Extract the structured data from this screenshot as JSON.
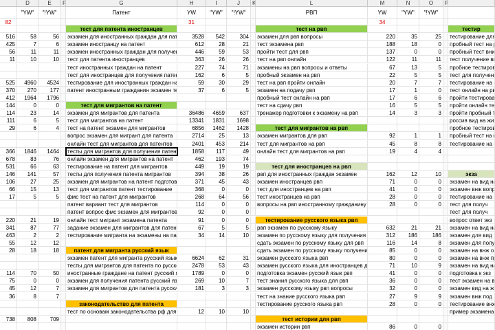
{
  "column_letters": {
    "D": "D",
    "E": "E",
    "F": "F",
    "G": "G",
    "H": "H",
    "I": "I",
    "J": "J",
    "K": "K",
    "L": "L",
    "M": "M",
    "N": "N",
    "O": "O",
    "P": "P"
  },
  "headers": {
    "D": "\"YW\"",
    "E": "\"!YW\"",
    "G": "Патент",
    "H": "YW",
    "I": "\"YW\"",
    "J": "\"!YW\"",
    "L": "РВП",
    "M": "YW",
    "N": "\"YW\"",
    "O": "\"!YW\""
  },
  "flags": {
    "C": 82,
    "H": 31,
    "M": 34
  },
  "sheet": {
    "left": [
      null,
      [
        516,
        58,
        56
      ],
      [
        425,
        7,
        6
      ],
      [
        56,
        11,
        11
      ],
      [
        11,
        10,
        10
      ],
      null,
      null,
      [
        525,
        4960,
        4524
      ],
      [
        370,
        270,
        177
      ],
      [
        412,
        1964,
        1796
      ],
      [
        144,
        0,
        0
      ],
      [
        114,
        23,
        14
      ],
      [
        111,
        6,
        5
      ],
      [
        29,
        6,
        4
      ],
      null,
      null,
      [
        366,
        1846,
        1464
      ],
      [
        678,
        83,
        76
      ],
      [
        531,
        66,
        63
      ],
      [
        146,
        141,
        57
      ],
      [
        106,
        27,
        25
      ],
      [
        66,
        15,
        13
      ],
      [
        17,
        5,
        5
      ],
      null,
      null,
      [
        220,
        21,
        19
      ],
      [
        341,
        87,
        77
      ],
      [
        463,
        2,
        2
      ],
      [
        55,
        12,
        12
      ],
      [
        28,
        18,
        18
      ],
      null,
      null,
      [
        114,
        70,
        50
      ],
      [
        75,
        0,
        0
      ],
      [
        45,
        12,
        7
      ],
      [
        36,
        8,
        7
      ],
      null,
      null,
      [
        738,
        808,
        709
      ],
      null
    ],
    "patent": [
      {
        "text": "тест для патента иностранцев",
        "fill": "#92d050"
      },
      {
        "text": "экзамен для иностранных граждан для патента",
        "values": [
          3528,
          542,
          304
        ]
      },
      {
        "text": "экзамен иностранцу на патент",
        "values": [
          612,
          28,
          21
        ]
      },
      {
        "text": "экзамен иностранных граждан для получения",
        "values": [
          446,
          59,
          53
        ]
      },
      {
        "text": "тест для патента иностранцев",
        "values": [
          363,
          26,
          26
        ]
      },
      {
        "text": "тест иностранных граждан на патент",
        "values": [
          227,
          74,
          71
        ]
      },
      {
        "text": "тест для иностранцев для получения патент",
        "values": [
          162,
          6,
          5
        ]
      },
      {
        "text": "тестирование для иностранных граждан на п",
        "values": [
          59,
          30,
          29
        ]
      },
      {
        "text": "патент иностранным гражданин экзамен тест",
        "values": [
          37,
          6,
          5
        ]
      },
      null,
      {
        "text": "тест для мигрантов на патент",
        "fill": "#92d050"
      },
      {
        "text": "экзамен для мигрантов для патента",
        "values": [
          36486,
          4659,
          637
        ]
      },
      {
        "text": "тест для мигрантов на патент",
        "values": [
          13341,
          1831,
          1698
        ]
      },
      {
        "text": "тест на патент экзамен для мигрантов",
        "values": [
          6856,
          1462,
          1428
        ]
      },
      {
        "text": "вопрос экзамен для мигрант для патента",
        "values": [
          2714,
          25,
          13
        ]
      },
      {
        "text": "онлайн тест для мигрантов для патентов",
        "values": [
          2401,
          453,
          214
        ]
      },
      {
        "text": "тесты для мигрантов для получения патента",
        "values": [
          1858,
          117,
          49
        ]
      },
      {
        "text": "онлайн экзамен для мигрантов на патент",
        "values": [
          462,
          193,
          74
        ]
      },
      {
        "text": "тестирование на патент для мигрантов",
        "values": [
          449,
          19,
          19
        ]
      },
      {
        "text": "тесты для получения патента мигрантов",
        "values": [
          394,
          38,
          26
        ]
      },
      {
        "text": "экзамен для мигрантов на патент подготовка",
        "values": [
          371,
          45,
          43
        ]
      },
      {
        "text": "тест для мигрантов патент тестирование",
        "values": [
          368,
          0,
          0
        ]
      },
      {
        "text": "фмс тест на патент для мигрантов",
        "values": [
          268,
          64,
          56
        ]
      },
      {
        "text": "патент вариант тест для мигрантов",
        "values": [
          114,
          0,
          0
        ]
      },
      {
        "text": "патент вопрос фмс экзамен для мигрантов",
        "values": [
          92,
          0,
          0
        ]
      },
      {
        "text": "онлайн тест мигрант экзамена патента",
        "values": [
          91,
          0,
          0
        ]
      },
      {
        "text": "задание экзамен для мигрантов для патента",
        "values": [
          67,
          5,
          5
        ]
      },
      {
        "text": "тестирование мигранта на экзамены на патент",
        "values": [
          34,
          14,
          10
        ]
      },
      null,
      {
        "text": "патент для мигранта русский язык",
        "fill": "#ffc000"
      },
      {
        "text": "экзамен патент для мигранта русский язык",
        "values": [
          6624,
          62,
          31
        ]
      },
      {
        "text": "тесты для мигрантов для патента по русскому яз",
        "values": [
          2478,
          53,
          43
        ]
      },
      {
        "text": "иностранные граждане на патент русский язык",
        "values": [
          1789,
          0,
          0
        ]
      },
      {
        "text": "экзамен для получения патента русский язык",
        "values": [
          269,
          10,
          7
        ]
      },
      {
        "text": "экзамен для мигрантов для патента русский язык",
        "values": [
          181,
          3,
          3
        ]
      },
      null,
      {
        "text": "законодательство для патента",
        "fill": "#ffc000"
      },
      {
        "text": "тест по основам законодательства рф для па",
        "values": [
          12,
          10,
          10
        ]
      },
      null,
      null
    ],
    "rvp": [
      {
        "text": "тест на рвп",
        "fill": "#92d050"
      },
      {
        "text": "экзамен для рвп вопросы",
        "values": [
          220,
          35,
          25
        ]
      },
      {
        "text": "тест экзамена рвп",
        "values": [
          188,
          18,
          0
        ]
      },
      {
        "text": "пройти тест для рвп",
        "values": [
          137,
          0,
          0
        ]
      },
      {
        "text": "тест на рвп онлайн",
        "values": [
          122,
          11,
          11
        ]
      },
      {
        "text": "экзамены на рвп вопросы и ответы",
        "values": [
          67,
          13,
          5
        ]
      },
      {
        "text": "пробный экзамен на рвп",
        "values": [
          22,
          5,
          5
        ]
      },
      {
        "text": "тест на рвп пройти онлайн",
        "values": [
          20,
          7,
          7
        ]
      },
      {
        "text": "экзамен на подачу рвп",
        "values": [
          17,
          1,
          0
        ]
      },
      {
        "text": "пробный тест онлайн на рвп",
        "values": [
          17,
          6,
          6
        ]
      },
      {
        "text": "тест на сдачу рвп",
        "values": [
          16,
          5,
          5
        ]
      },
      {
        "text": "тренажер подготовки к экзамену на рвп",
        "values": [
          14,
          3,
          3
        ]
      },
      null,
      {
        "text": "тест для мигрантов на рвп",
        "fill": "#92d050"
      },
      {
        "text": "экзамен мигрантов для рвп",
        "values": [
          92,
          1,
          1
        ]
      },
      {
        "text": "тест для мигрантов на рвп",
        "values": [
          45,
          8,
          8
        ]
      },
      {
        "text": "онлайн тест для мигрантов на рвп",
        "values": [
          19,
          4,
          4
        ]
      },
      null,
      {
        "text": "тест для иностранцев на рвп",
        "fill": "#d8e4bc"
      },
      {
        "text": "рвп для иностранных граждан экзамен",
        "values": [
          162,
          12,
          10
        ]
      },
      {
        "text": "экзамен иностранцев рвп",
        "values": [
          71,
          0,
          0
        ]
      },
      {
        "text": "тест для иностранцев на рвп",
        "values": [
          41,
          0,
          0
        ]
      },
      {
        "text": "тест иностранцев на рвп",
        "values": [
          28,
          0,
          0
        ]
      },
      {
        "text": "вопросы на рвп иностранному гражданину",
        "values": [
          28,
          0,
          0
        ]
      },
      null,
      {
        "text": "тестирование русского языка рвп",
        "fill": "#ffc000"
      },
      {
        "text": "рвп экзамен по русскому языку",
        "values": [
          632,
          21,
          21
        ]
      },
      {
        "text": "экзамен по русскому языку для получения рвп",
        "values": [
          312,
          186,
          186
        ]
      },
      {
        "text": "сдать экзамен по русскому языку для рвп",
        "values": [
          116,
          14,
          8
        ]
      },
      {
        "text": "сдать экзамен по русскому языку получения рвп",
        "values": [
          85,
          0,
          0
        ]
      },
      {
        "text": "экзамен русского языка рвп",
        "values": [
          80,
          0,
          0
        ]
      },
      {
        "text": "экзамен русского языка для иностранцев для рвп",
        "values": [
          71,
          10,
          9
        ]
      },
      {
        "text": "подготовка экзамен русский язык рвп",
        "values": [
          41,
          0,
          0
        ]
      },
      {
        "text": "тест знания русского языка для рвп",
        "values": [
          36,
          0,
          0
        ]
      },
      {
        "text": "экзамен русскому языку рвп вопросы",
        "values": [
          32,
          0,
          0
        ]
      },
      {
        "text": "тест на знание русского языка рвп",
        "values": [
          27,
          9,
          9
        ]
      },
      {
        "text": "тестирование русского языка рвп",
        "values": [
          28,
          0,
          0
        ]
      },
      null,
      {
        "text": "тест истории для рвп",
        "fill": "#ffc000"
      },
      {
        "text": "экзамен истории рвп",
        "values": [
          86,
          0,
          0
        ]
      }
    ],
    "vnzh": [
      {
        "text": "тестир",
        "fill": "#92d050"
      },
      {
        "text": "тестирование для ин"
      },
      {
        "text": "пробный тест на рвп"
      },
      {
        "text": "пробный тест вни"
      },
      {
        "text": "тест получение вн"
      },
      {
        "text": "пробное тестиров"
      },
      {
        "text": "тест для получения"
      },
      {
        "text": "тестирование на п"
      },
      {
        "text": "тест онлайн на рвп"
      },
      {
        "text": "пройти тестирова"
      },
      {
        "text": "пройти онлайн те"
      },
      {
        "text": "пройти пробный т"
      },
      {
        "text": "россия вид на жит"
      },
      {
        "text": "пробное тестиров"
      },
      {
        "text": "пробный тест на в"
      },
      {
        "text": "тестирование на в"
      },
      null,
      null,
      null,
      {
        "text": "экза",
        "fill": "#d8e4bc"
      },
      {
        "text": "экзамен на вид на"
      },
      {
        "text": "экзамен внж вопр"
      },
      {
        "text": "тестирование на в"
      },
      {
        "text": "тест для получ"
      },
      {
        "text": "тест для получ"
      },
      {
        "text": "вопрос ответ экз"
      },
      {
        "text": "экзамен на вид на"
      },
      {
        "text": "экзамен для вид"
      },
      {
        "text": "экзамен для полу"
      },
      {
        "text": "экзамен на внж о"
      },
      {
        "text": "экзамен на внж пр"
      },
      {
        "text": "экзамен на вид на"
      },
      {
        "text": "подготовка к экз"
      },
      {
        "text": "тест экзамен на вн"
      },
      {
        "text": "экзамен вид на ж"
      },
      {
        "text": "экзамен внж под"
      },
      {
        "text": "тестирование внж"
      },
      {
        "text": "пример экзамена"
      },
      null,
      null
    ]
  }
}
